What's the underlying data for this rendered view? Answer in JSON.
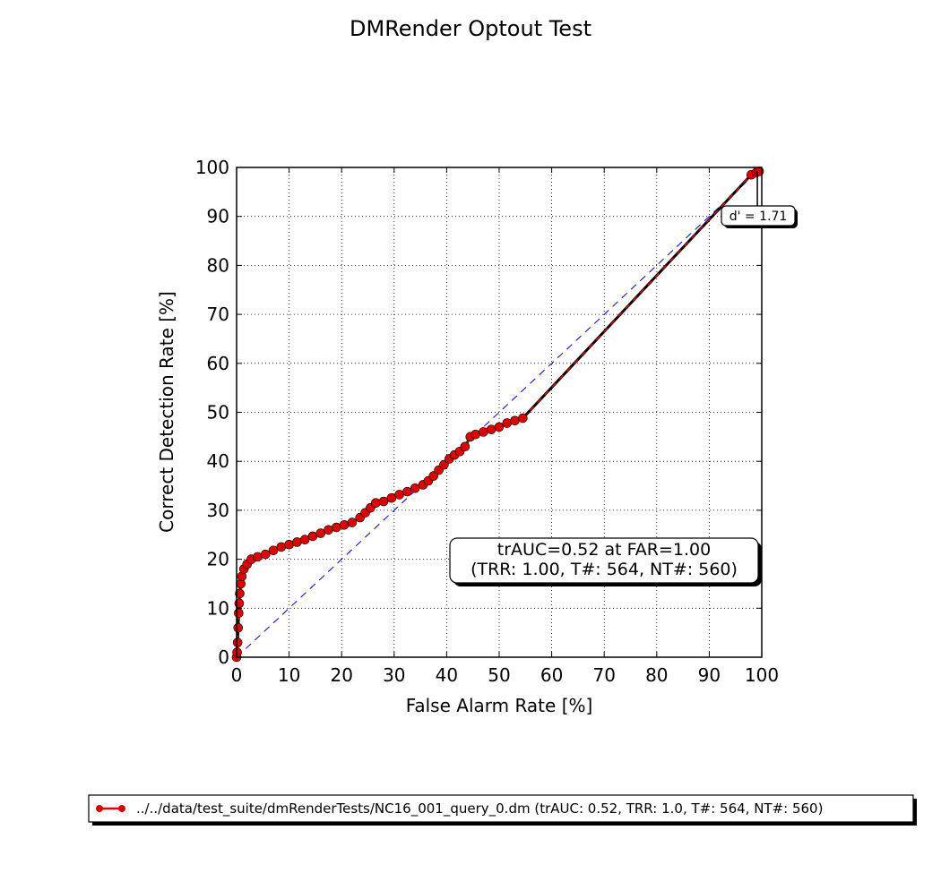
{
  "chart_data": {
    "type": "line",
    "title": "DMRender Optout Test",
    "xlabel": "False Alarm Rate [%]",
    "ylabel": "Correct Detection Rate [%]",
    "xlim": [
      0,
      100
    ],
    "ylim": [
      0,
      100
    ],
    "xticks": [
      "0",
      "10",
      "20",
      "30",
      "40",
      "50",
      "60",
      "70",
      "80",
      "90",
      "100"
    ],
    "yticks": [
      "0",
      "10",
      "20",
      "30",
      "40",
      "50",
      "60",
      "70",
      "80",
      "90",
      "100"
    ],
    "grid": true,
    "series": [
      {
        "name": "../../data/test_suite/dmRenderTests/NC16_001_query_0.dm (trAUC: 0.52, TRR: 1.0, T#: 564, NT#: 560)",
        "color": "#dd0000",
        "x": [
          0.0,
          0.1,
          0.2,
          0.3,
          0.4,
          0.5,
          0.6,
          0.8,
          1.0,
          1.4,
          2.0,
          2.8,
          4.0,
          5.5,
          7.0,
          8.5,
          10.0,
          11.5,
          13.0,
          14.5,
          16.0,
          17.5,
          19.0,
          20.5,
          22.0,
          23.5,
          24.5,
          25.5,
          26.5,
          28.0,
          29.5,
          31.0,
          32.5,
          34.0,
          35.5,
          36.5,
          37.5,
          38.5,
          39.5,
          40.5,
          41.5,
          42.5,
          43.5,
          44.5,
          45.5,
          47.0,
          48.5,
          50.0,
          51.5,
          53.0,
          54.5,
          98.0,
          99.0,
          99.5
        ],
        "y": [
          0.0,
          1.0,
          3.0,
          6.0,
          9.0,
          11.0,
          13.0,
          15.0,
          16.5,
          18.0,
          19.0,
          20.0,
          20.5,
          21.0,
          21.8,
          22.5,
          23.0,
          23.5,
          24.0,
          24.7,
          25.3,
          26.0,
          26.5,
          27.0,
          27.5,
          28.5,
          29.5,
          30.5,
          31.5,
          31.8,
          32.5,
          33.2,
          33.8,
          34.5,
          35.2,
          36.0,
          37.0,
          38.2,
          39.3,
          40.5,
          41.3,
          42.0,
          43.0,
          45.0,
          45.5,
          46.0,
          46.5,
          47.0,
          47.8,
          48.3,
          48.8,
          98.5,
          99.0,
          99.2
        ]
      }
    ],
    "chance_line": {
      "x": [
        0,
        100
      ],
      "y": [
        0,
        100
      ],
      "color": "#0000cc"
    },
    "annotations": {
      "trauc_line1": "trAUC=0.52 at FAR=1.00",
      "trauc_line2": "(TRR: 1.00, T#: 564, NT#: 560)",
      "dprime": "d' = 1.71",
      "dprime_point": {
        "x": 99.5,
        "y": 99.2
      }
    },
    "legend_placement": "bottom-center"
  }
}
